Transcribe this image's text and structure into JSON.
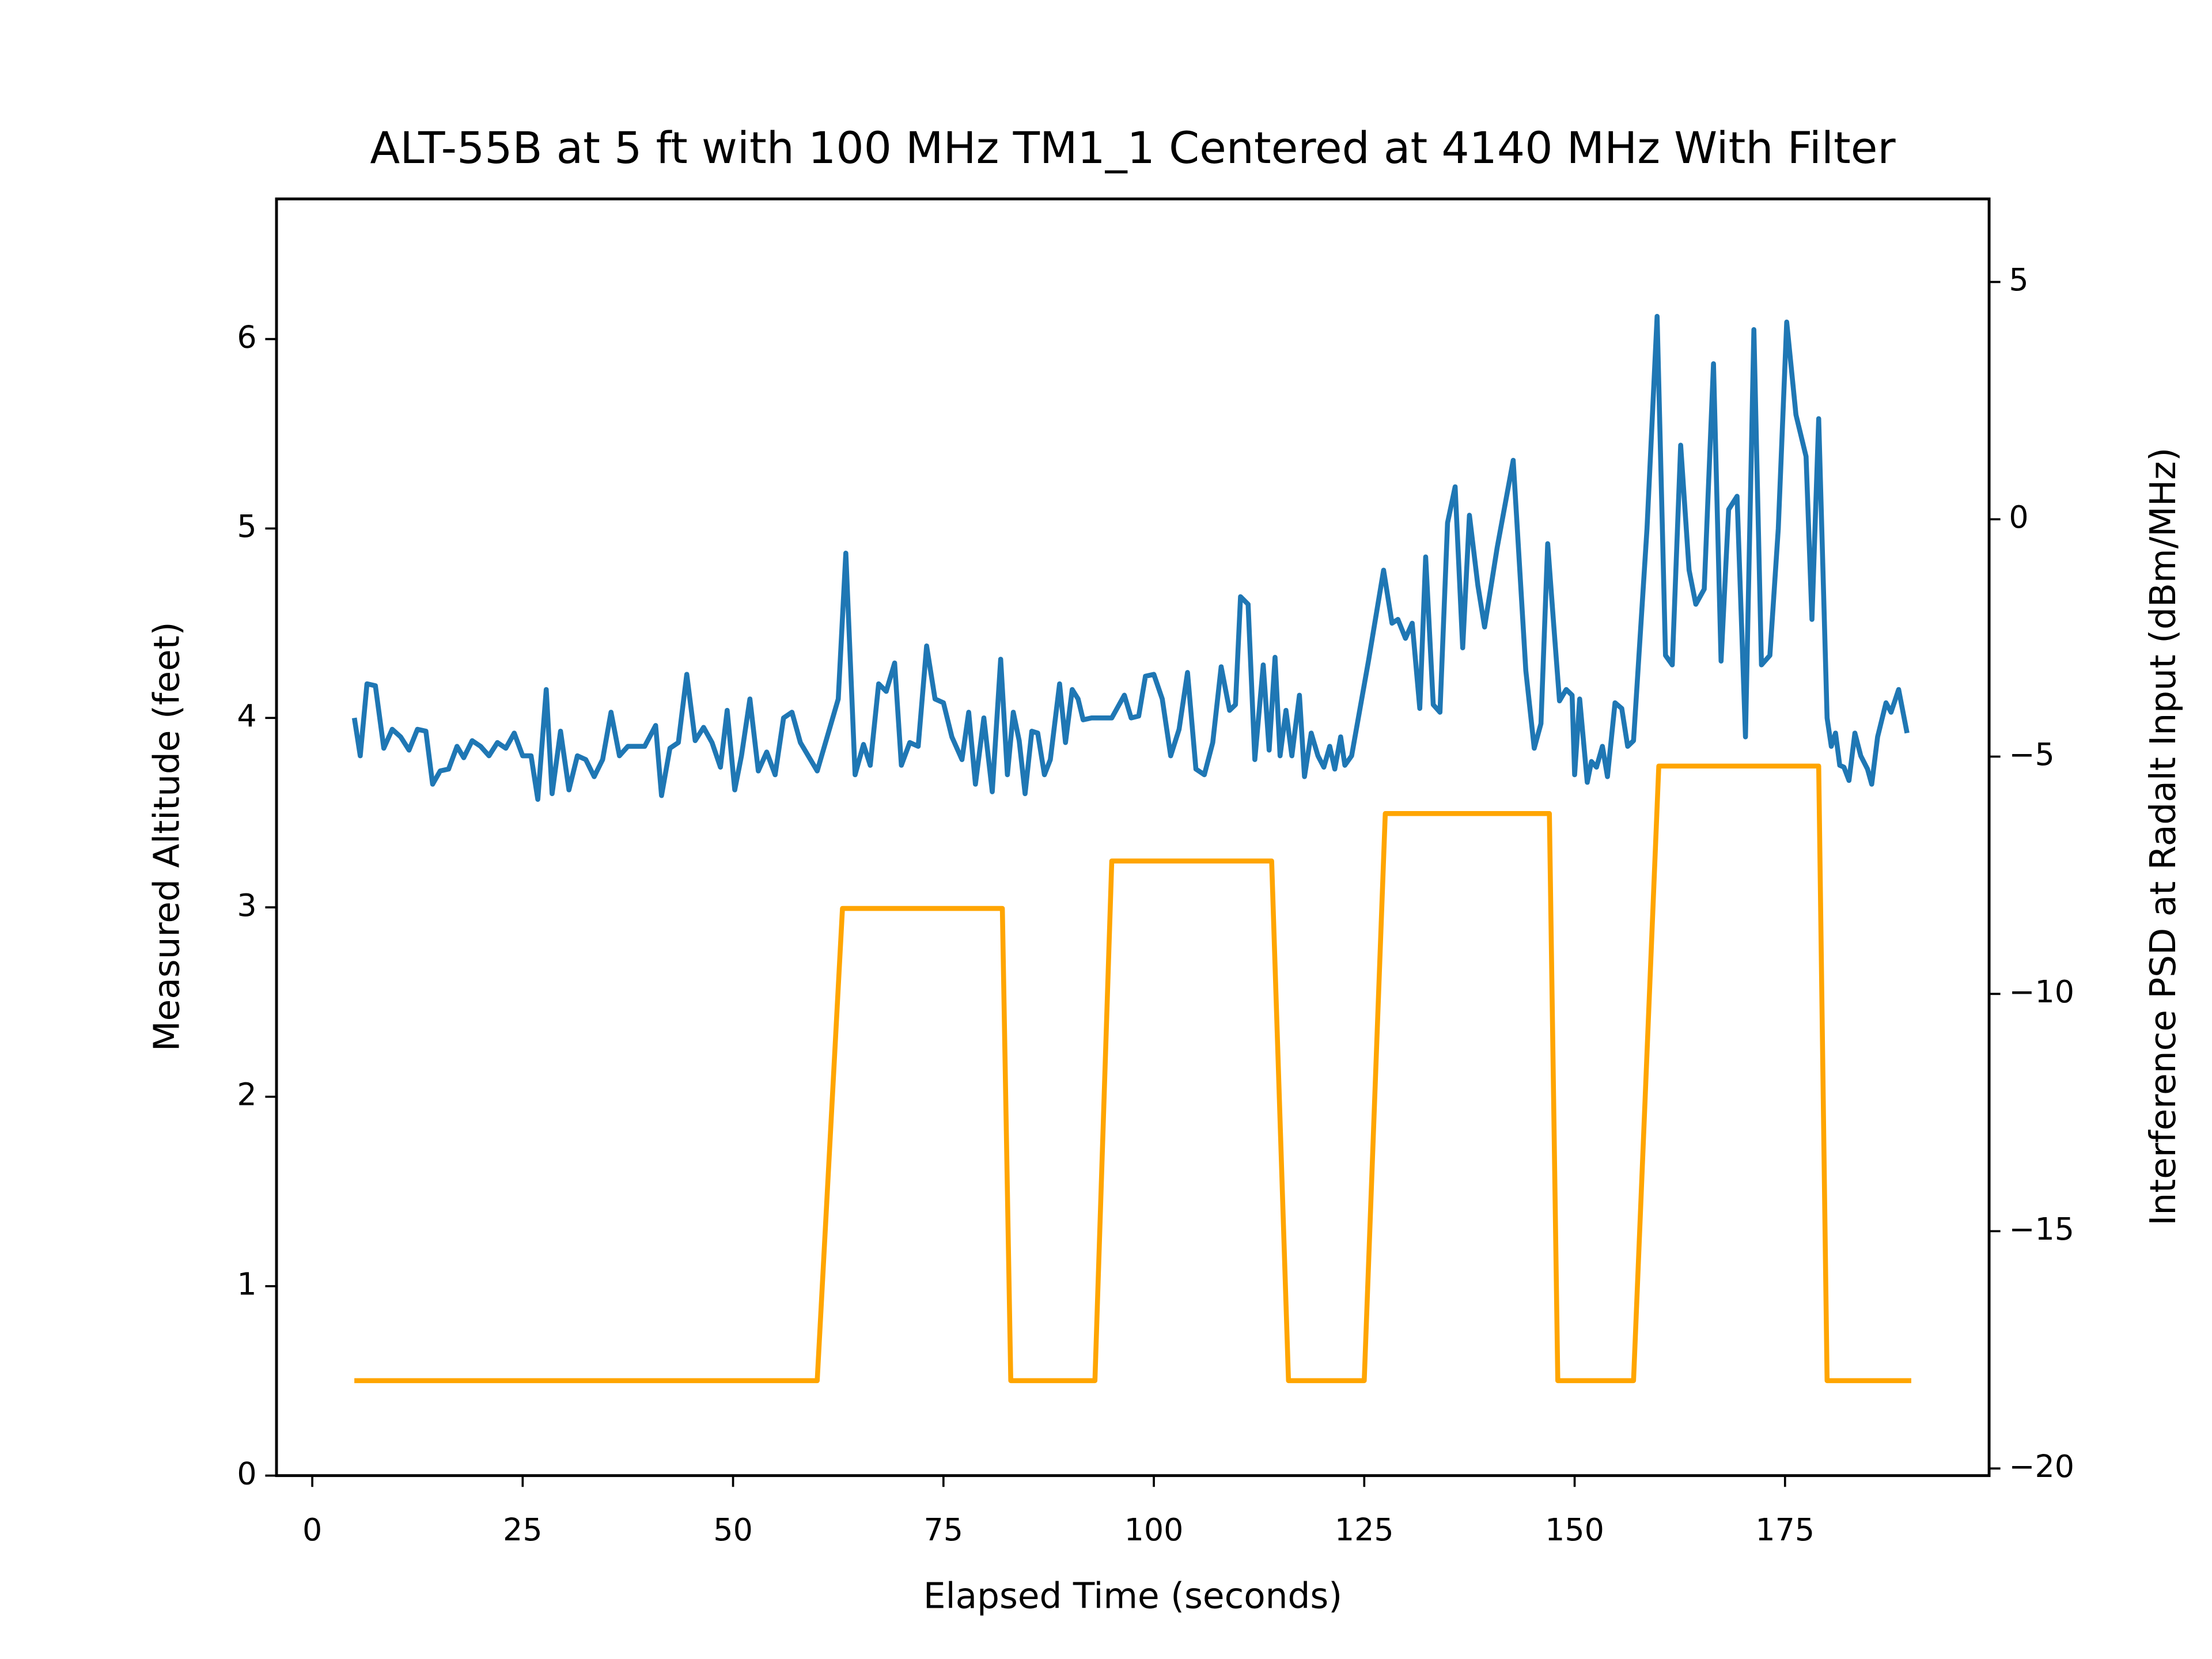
{
  "chart_data": {
    "type": "line",
    "title": "ALT-55B at 5 ft with 100 MHz TM1_1 Centered at 4140 MHz With Filter",
    "x_label": "Elapsed Time (seconds)",
    "y_label": "Measured Altitude (feet)",
    "y2_label": "Interference PSD at Radalt Input (dBm/MHz)",
    "xlim": [
      -4.25,
      199.25
    ],
    "xticks": [
      0,
      25,
      50,
      75,
      100,
      125,
      150,
      175
    ],
    "ylim": [
      0,
      6.74
    ],
    "yticks": [
      0,
      1,
      2,
      3,
      4,
      5,
      6
    ],
    "y2lim": [
      -20.15,
      6.75
    ],
    "y2ticks": [
      {
        "value": -20,
        "label": "−20"
      },
      {
        "value": -15,
        "label": "−15"
      },
      {
        "value": -10,
        "label": "−10"
      },
      {
        "value": -5,
        "label": "−5"
      },
      0,
      5
    ],
    "grid": false,
    "series": [
      {
        "color": "#1f77b4",
        "x": [
          5,
          5.7,
          6.5,
          7.5,
          8.5,
          9.5,
          10.5,
          11.5,
          12.5,
          13.5,
          14.3,
          15.2,
          16.2,
          17.2,
          18,
          19,
          20,
          21,
          22,
          23,
          24,
          25,
          26,
          26.8,
          27.8,
          28.5,
          29.5,
          30.5,
          31.5,
          32.5,
          33.5,
          34.5,
          35.5,
          36.5,
          37.5,
          38.5,
          39.5,
          40.8,
          41.5,
          42.5,
          43.5,
          44.5,
          45.5,
          46.5,
          47.5,
          48.5,
          49.3,
          50.2,
          51,
          52,
          53,
          54,
          55,
          56,
          57,
          58,
          60,
          62.5,
          63.4,
          64.5,
          65.5,
          66.3,
          67.3,
          68.2,
          69.2,
          70,
          71,
          72,
          73,
          74,
          75,
          76,
          77.2,
          78,
          78.8,
          79.8,
          80.8,
          81.8,
          82.6,
          83.3,
          84,
          84.7,
          85.5,
          86.2,
          87,
          87.7,
          88.8,
          89.5,
          90.3,
          91,
          91.6,
          92.6,
          93.6,
          95,
          96.5,
          97.3,
          98.2,
          99,
          100,
          101,
          102,
          103,
          104,
          105,
          106,
          107,
          108,
          109,
          109.7,
          110.3,
          111.2,
          112,
          113,
          113.7,
          114.4,
          115,
          115.7,
          116.4,
          117.3,
          117.9,
          118.7,
          119.5,
          120.2,
          120.9,
          121.5,
          122.2,
          122.7,
          123.5,
          125.5,
          127.3,
          128.3,
          129,
          129.9,
          130.7,
          131.6,
          132.3,
          133.2,
          134,
          134.9,
          135.8,
          136.7,
          137.5,
          138.5,
          139.3,
          140.8,
          142.7,
          144.2,
          145.2,
          146,
          146.8,
          147.5,
          148.2,
          149,
          149.7,
          150,
          150.6,
          151.5,
          152,
          152.6,
          153.3,
          153.9,
          154.8,
          155.6,
          156.3,
          157,
          158.6,
          159.8,
          160.8,
          161.6,
          162.6,
          163.6,
          164.4,
          165.4,
          166.5,
          167.4,
          168.3,
          169.3,
          170.3,
          171.3,
          172.2,
          173.2,
          174.2,
          175.2,
          176.3,
          177.5,
          178.2,
          179,
          180,
          180.5,
          181,
          181.5,
          182,
          182.6,
          183.3,
          184,
          184.8,
          185.3,
          186,
          187,
          187.6,
          188.5,
          189.5
        ],
        "values": [
          4.0,
          3.8,
          4.18,
          4.17,
          3.84,
          3.94,
          3.9,
          3.83,
          3.94,
          3.93,
          3.65,
          3.72,
          3.73,
          3.85,
          3.79,
          3.88,
          3.85,
          3.8,
          3.87,
          3.84,
          3.92,
          3.8,
          3.8,
          3.57,
          4.15,
          3.6,
          3.93,
          3.62,
          3.8,
          3.78,
          3.69,
          3.78,
          4.03,
          3.8,
          3.85,
          3.85,
          3.85,
          3.96,
          3.59,
          3.84,
          3.87,
          4.23,
          3.88,
          3.95,
          3.87,
          3.74,
          4.04,
          3.62,
          3.8,
          4.1,
          3.72,
          3.82,
          3.7,
          4.0,
          4.03,
          3.87,
          3.72,
          4.1,
          4.87,
          3.7,
          3.86,
          3.75,
          4.18,
          4.14,
          4.29,
          3.75,
          3.87,
          3.85,
          4.38,
          4.1,
          4.08,
          3.9,
          3.78,
          4.03,
          3.65,
          4.0,
          3.61,
          4.31,
          3.7,
          4.03,
          3.88,
          3.6,
          3.93,
          3.92,
          3.7,
          3.78,
          4.18,
          3.87,
          4.15,
          4.1,
          3.99,
          4.0,
          4.0,
          4.0,
          4.12,
          4.0,
          4.01,
          4.22,
          4.23,
          4.1,
          3.8,
          3.94,
          4.24,
          3.73,
          3.7,
          3.87,
          4.27,
          4.04,
          4.07,
          4.64,
          4.6,
          3.78,
          4.28,
          3.83,
          4.32,
          3.8,
          4.04,
          3.8,
          4.12,
          3.69,
          3.92,
          3.8,
          3.74,
          3.85,
          3.73,
          3.9,
          3.75,
          3.8,
          4.3,
          4.78,
          4.5,
          4.52,
          4.42,
          4.5,
          4.05,
          4.85,
          4.07,
          4.03,
          5.03,
          5.22,
          4.37,
          5.07,
          4.7,
          4.48,
          4.9,
          5.36,
          4.25,
          3.84,
          3.97,
          4.92,
          4.5,
          4.09,
          4.15,
          4.12,
          3.7,
          4.1,
          3.66,
          3.77,
          3.74,
          3.85,
          3.69,
          4.08,
          4.05,
          3.85,
          3.88,
          5.0,
          6.12,
          4.33,
          4.28,
          5.44,
          4.78,
          4.6,
          4.68,
          5.87,
          4.3,
          5.1,
          5.17,
          3.9,
          6.05,
          4.28,
          4.33,
          5.0,
          6.09,
          5.6,
          5.38,
          4.52,
          5.58,
          4.0,
          3.85,
          3.92,
          3.75,
          3.74,
          3.67,
          3.92,
          3.8,
          3.73,
          3.65,
          3.9,
          4.08,
          4.03,
          4.15,
          3.92
        ]
      },
      {
        "color": "#ffa500",
        "axis": "y2",
        "x": [
          5,
          60,
          63,
          82,
          83,
          93,
          95,
          114,
          116,
          125,
          127.5,
          147,
          148,
          157,
          160,
          179,
          180,
          190
        ],
        "values": [
          -18.15,
          -18.15,
          -8.2,
          -8.2,
          -18.15,
          -18.15,
          -7.2,
          -7.2,
          -18.15,
          -18.15,
          -6.2,
          -6.2,
          -18.15,
          -18.15,
          -5.2,
          -5.2,
          -18.15,
          -18.15
        ]
      }
    ]
  }
}
